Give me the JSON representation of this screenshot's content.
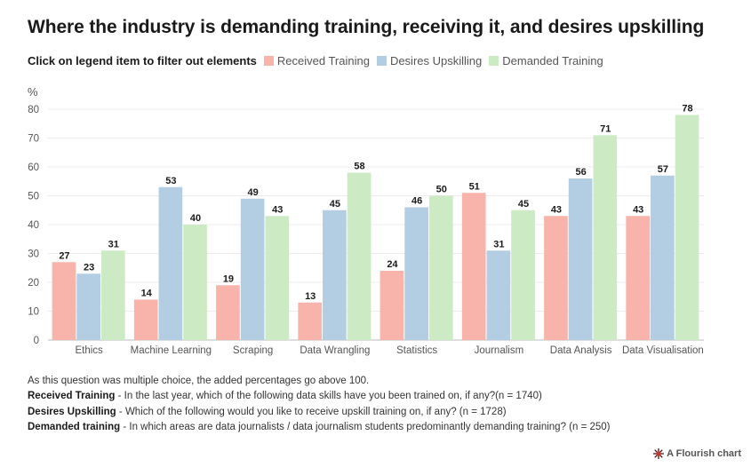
{
  "title": "Where the industry is demanding training, receiving it, and desires upskilling",
  "legend": {
    "prompt": "Click on legend item to filter out elements",
    "items": [
      {
        "label": "Received Training",
        "color": "#f8b3ab"
      },
      {
        "label": "Desires Upskilling",
        "color": "#b3cde3"
      },
      {
        "label": "Demanded Training",
        "color": "#ccebc5"
      }
    ]
  },
  "chart_data": {
    "type": "bar",
    "ylabel": "%",
    "ylim": [
      0,
      80
    ],
    "yticks": [
      0,
      10,
      20,
      30,
      40,
      50,
      60,
      70,
      80
    ],
    "grid": true,
    "legend_position": "top",
    "categories": [
      "Ethics",
      "Machine Learning",
      "Scraping",
      "Data Wrangling",
      "Statistics",
      "Journalism",
      "Data Analysis",
      "Data Visualisation"
    ],
    "series": [
      {
        "name": "Received Training",
        "color": "#f8b3ab",
        "values": [
          27,
          14,
          19,
          13,
          24,
          51,
          43,
          43
        ]
      },
      {
        "name": "Desires Upskilling",
        "color": "#b3cde3",
        "values": [
          23,
          53,
          49,
          45,
          46,
          31,
          56,
          57
        ]
      },
      {
        "name": "Demanded Training",
        "color": "#ccebc5",
        "values": [
          31,
          40,
          43,
          58,
          50,
          45,
          71,
          78
        ]
      }
    ]
  },
  "notes": {
    "line1": "As this question was multiple choice, the added percentages go above 100.",
    "received_label": "Received Training",
    "received_text": " - In the last year, which of the following data skills have you been trained on, if any?(n = 1740)",
    "desires_label": "Desires Upskilling",
    "desires_text": " - Which of the following would you like to receive upskill training on, if any? (n = 1728)",
    "demanded_label": "Demanded training",
    "demanded_text": " - In which areas are data journalists / data journalism students predominantly demanding training? (n = 250)"
  },
  "credit": {
    "text": "A Flourish chart",
    "icon": "flourish-logo-icon"
  }
}
